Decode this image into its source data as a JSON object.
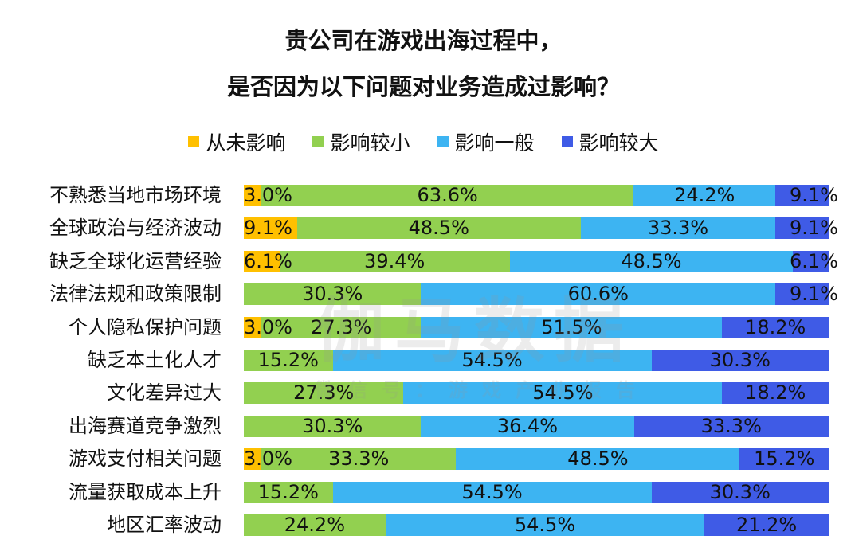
{
  "chart_data": {
    "type": "bar",
    "orientation": "horizontal",
    "stacked": true,
    "title": "贵公司在游戏出海过程中，\n是否因为以下问题对业务造成过影响？",
    "title_lines": [
      "贵公司在游戏出海过程中，",
      "是否因为以下问题对业务造成过影响？"
    ],
    "legend_position": "top",
    "grid": false,
    "categories": [
      "不熟悉当地市场环境",
      "全球政治与经济波动",
      "缺乏全球化运营经验",
      "法律法规和政策限制",
      "个人隐私保护问题",
      "缺乏本土化人才",
      "文化差异过大",
      "出海赛道竞争激烈",
      "游戏支付相关问题",
      "流量获取成本上升",
      "地区汇率波动"
    ],
    "series": [
      {
        "name": "从未影响",
        "color": "#FFC000",
        "values": [
          3.0,
          9.1,
          6.1,
          0,
          3.0,
          0,
          0,
          0,
          3.0,
          0,
          0
        ]
      },
      {
        "name": "影响较小",
        "color": "#92D050",
        "values": [
          63.6,
          48.5,
          39.4,
          30.3,
          27.3,
          15.2,
          27.3,
          30.3,
          33.3,
          15.2,
          24.2
        ]
      },
      {
        "name": "影响一般",
        "color": "#3DB4F2",
        "values": [
          24.2,
          33.3,
          48.5,
          60.6,
          51.5,
          54.5,
          54.5,
          36.4,
          48.5,
          54.5,
          54.5
        ]
      },
      {
        "name": "影响较大",
        "color": "#3F5BE6",
        "values": [
          9.1,
          9.1,
          6.1,
          9.1,
          18.2,
          30.3,
          18.2,
          33.3,
          15.2,
          30.3,
          21.2
        ]
      }
    ],
    "value_format": "percent_1dp"
  },
  "watermark": {
    "main": "伽马数据",
    "sub": "微信号：游戏产业报告"
  }
}
